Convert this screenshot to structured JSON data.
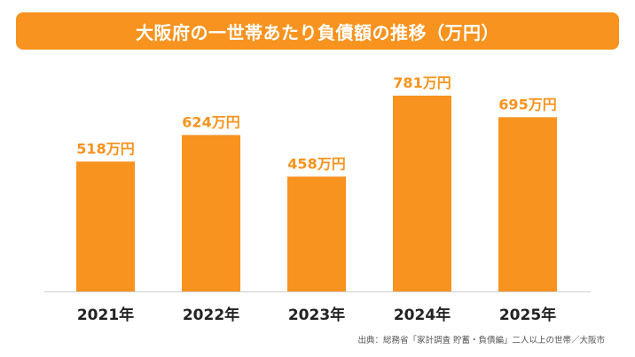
{
  "colors": {
    "accent": "#f7931e",
    "label": "#f7931e",
    "axis_label": "#222222",
    "source": "#555555"
  },
  "chart_data": {
    "type": "bar",
    "title": "大阪府の一世帯あたり負債額の推移（万円）",
    "categories": [
      "2021年",
      "2022年",
      "2023年",
      "2024年",
      "2025年"
    ],
    "values": [
      518,
      624,
      458,
      781,
      695
    ],
    "data_labels": [
      "518万円",
      "624万円",
      "458万円",
      "781万円",
      "695万円"
    ],
    "ylim": [
      0,
      1000
    ],
    "grid": false,
    "legend": "none"
  },
  "footer": {
    "source": "出典：総務省「家計調査 貯蓄・負債編」二人以上の世帯／大阪市"
  }
}
